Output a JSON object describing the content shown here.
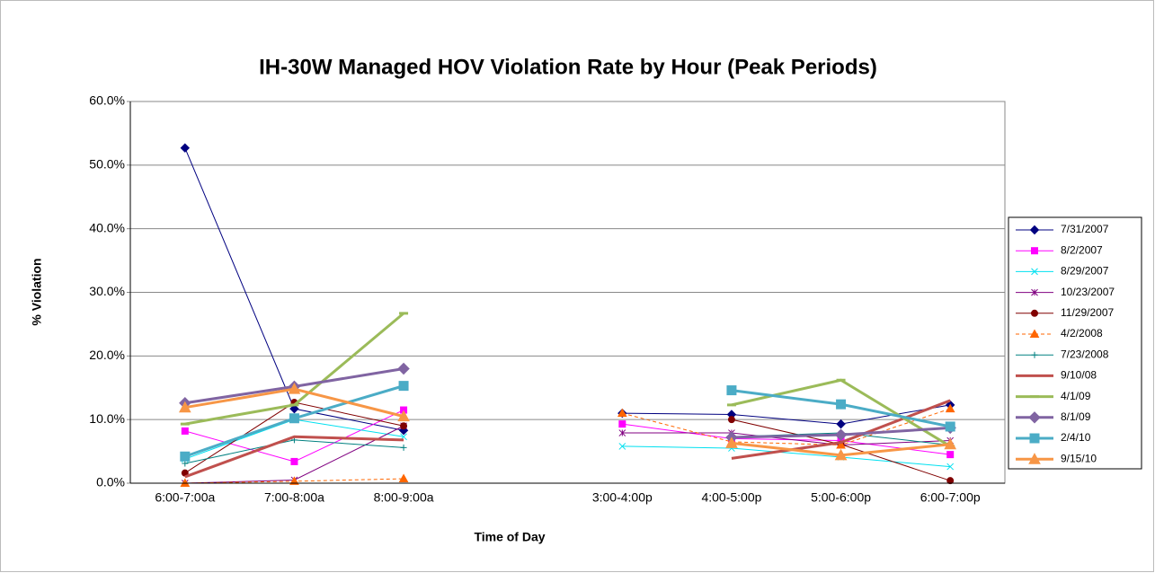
{
  "chart_data": {
    "type": "line",
    "title": "IH-30W Managed HOV Violation Rate by Hour (Peak Periods)",
    "x_label": "Time of Day",
    "y_label": "% Violation",
    "categories": [
      "6:00-7:00a",
      "7:00-8:00a",
      "8:00-9:00a",
      null,
      "3:00-4:00p",
      "4:00-5:00p",
      "5:00-6:00p",
      "6:00-7:00p"
    ],
    "ylim": [
      0,
      60
    ],
    "yticks": [
      {
        "value": 0,
        "label": "0.0%"
      },
      {
        "value": 10,
        "label": "10.0%"
      },
      {
        "value": 20,
        "label": "20.0%"
      },
      {
        "value": 30,
        "label": "30.0%"
      },
      {
        "value": 40,
        "label": "40.0%"
      },
      {
        "value": 50,
        "label": "50.0%"
      },
      {
        "value": 60,
        "label": "60.0%"
      }
    ],
    "grid": true,
    "legend": "right",
    "series": [
      {
        "name": "7/31/2007",
        "color": "#000080",
        "marker": "diamond",
        "line_width": 1,
        "dashed": false,
        "values": [
          52.7,
          11.7,
          8.3,
          null,
          11.0,
          10.8,
          9.3,
          12.3
        ]
      },
      {
        "name": "8/2/2007",
        "color": "#ff00ff",
        "marker": "square",
        "line_width": 1,
        "dashed": false,
        "values": [
          8.2,
          3.4,
          11.5,
          null,
          9.3,
          7.0,
          6.7,
          4.5
        ]
      },
      {
        "name": "8/29/2007",
        "color": "#00e0f0",
        "marker": "x",
        "line_width": 1,
        "dashed": false,
        "values": [
          3.8,
          10.0,
          7.3,
          null,
          5.8,
          5.5,
          4.1,
          2.6
        ]
      },
      {
        "name": "10/23/2007",
        "color": "#800080",
        "marker": "star",
        "line_width": 1,
        "dashed": false,
        "values": [
          0.0,
          0.5,
          9.0,
          null,
          7.9,
          7.9,
          6.0,
          6.7
        ]
      },
      {
        "name": "11/29/2007",
        "color": "#800000",
        "marker": "circle",
        "line_width": 1,
        "dashed": false,
        "values": [
          1.6,
          12.7,
          9.0,
          null,
          null,
          10.0,
          6.1,
          0.4
        ]
      },
      {
        "name": "4/2/2008",
        "color": "#ff6600",
        "marker": "triangle",
        "line_width": 1,
        "dashed": true,
        "values": [
          0.0,
          0.3,
          0.7,
          null,
          11.0,
          6.5,
          6.0,
          11.7
        ]
      },
      {
        "name": "7/23/2008",
        "color": "#008080",
        "marker": "plus",
        "line_width": 1,
        "dashed": false,
        "values": [
          3.1,
          6.8,
          5.6,
          null,
          null,
          7.3,
          7.9,
          6.0
        ]
      },
      {
        "name": "9/10/08",
        "color": "#c0504d",
        "marker": "none",
        "line_width": 3,
        "dashed": false,
        "values": [
          1.0,
          7.3,
          6.8,
          null,
          null,
          3.9,
          6.4,
          13.0
        ]
      },
      {
        "name": "4/1/09",
        "color": "#9bbb59",
        "marker": "dash",
        "line_width": 3,
        "dashed": false,
        "values": [
          9.3,
          12.3,
          26.7,
          null,
          null,
          12.3,
          16.2,
          5.8
        ]
      },
      {
        "name": "8/1/09",
        "color": "#8064a2",
        "marker": "diamond",
        "line_width": 3,
        "dashed": false,
        "values": [
          12.6,
          15.2,
          18.0,
          null,
          null,
          7.2,
          7.6,
          8.7
        ]
      },
      {
        "name": "2/4/10",
        "color": "#4bacc6",
        "marker": "square",
        "line_width": 3,
        "dashed": false,
        "values": [
          4.2,
          10.2,
          15.3,
          null,
          null,
          14.6,
          12.4,
          8.9
        ]
      },
      {
        "name": "9/15/10",
        "color": "#f79646",
        "marker": "triangle",
        "line_width": 3,
        "dashed": false,
        "values": [
          11.9,
          14.8,
          10.5,
          null,
          null,
          6.3,
          4.4,
          6.1
        ]
      }
    ]
  }
}
